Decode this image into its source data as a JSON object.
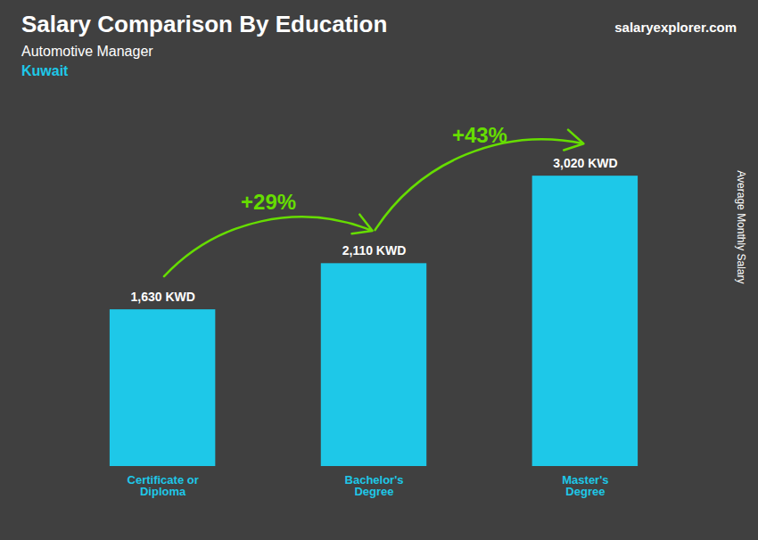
{
  "chart_data": {
    "type": "bar",
    "title": "Salary Comparison By Education",
    "subtitle": "Automotive Manager",
    "country": "Kuwait",
    "source": "salaryexplorer.com",
    "ylabel": "Average Monthly Salary",
    "categories": [
      "Certificate or\nDiploma",
      "Bachelor's\nDegree",
      "Master's\nDegree"
    ],
    "values": [
      1630,
      2110,
      3020
    ],
    "value_labels": [
      "1,630 KWD",
      "2,110 KWD",
      "3,020 KWD"
    ],
    "data_labels": true,
    "color": "#1EC8E8",
    "ylim": [
      0,
      3800
    ],
    "yticks": [],
    "tick_labels": "x",
    "grid": false,
    "annotations": [
      {
        "text": "+29%",
        "from": "Certificate or\nDiploma",
        "to": "Bachelor's\nDegree",
        "color": "#66DD00"
      },
      {
        "text": "+43%",
        "from": "Bachelor's\nDegree",
        "to": "Master's\nDegree",
        "color": "#66DD00"
      }
    ]
  }
}
